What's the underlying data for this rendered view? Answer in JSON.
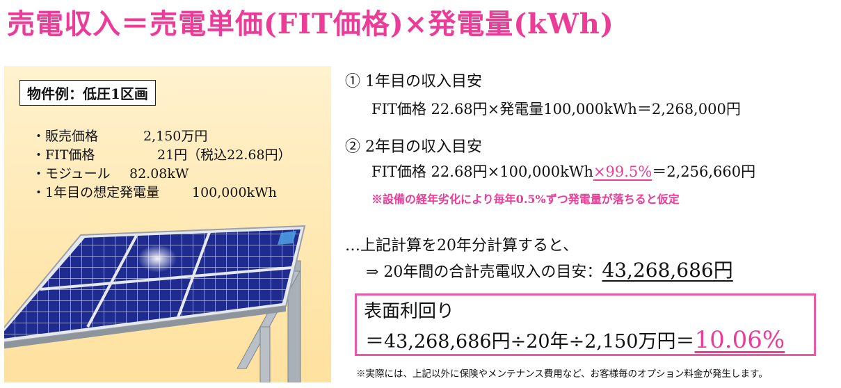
{
  "title": "売電収入＝売電単価(FIT価格)×発電量(kWh)",
  "property": {
    "label": "物件例：低圧1区画",
    "specs": [
      {
        "key": "・販売価格",
        "value": "2,150万円"
      },
      {
        "key": "・FIT価格",
        "value": "21円（税込22.68円）"
      },
      {
        "key": "・モジュール",
        "value": "82.08kW"
      },
      {
        "key": "・1年目の想定発電量",
        "value": "100,000kWh"
      }
    ]
  },
  "step1": {
    "heading": "① 1年目の収入目安",
    "formula": "FIT価格 22.68円×発電量100,000kWh＝2,268,000円"
  },
  "step2": {
    "heading": "② 2年目の収入目安",
    "formula_prefix": "FIT価格 22.68円×100,000kWh",
    "formula_rate": "×99.5%",
    "formula_suffix": "＝2,256,660円",
    "note": "※設備の経年劣化により毎年0.5%ずつ発電量が落ちると仮定"
  },
  "summary": {
    "line1": "…上記計算を20年分計算すると、",
    "line2_prefix": "⇒ 20年間の合計売電収入の目安：",
    "total": "43,268,686円"
  },
  "yield": {
    "title": "表面利回り",
    "formula": "＝43,268,686円÷20年÷2,150万円＝",
    "value": "10.06%"
  },
  "disclaimer": "※実際には、上記以外に保険やメンテナンス費用など、お客様毎のオプション料金が発生します。",
  "colors": {
    "accent": "#ec3c98",
    "panel_bg": "#ffe8b2",
    "solar_cell": "#1f2b8f"
  }
}
